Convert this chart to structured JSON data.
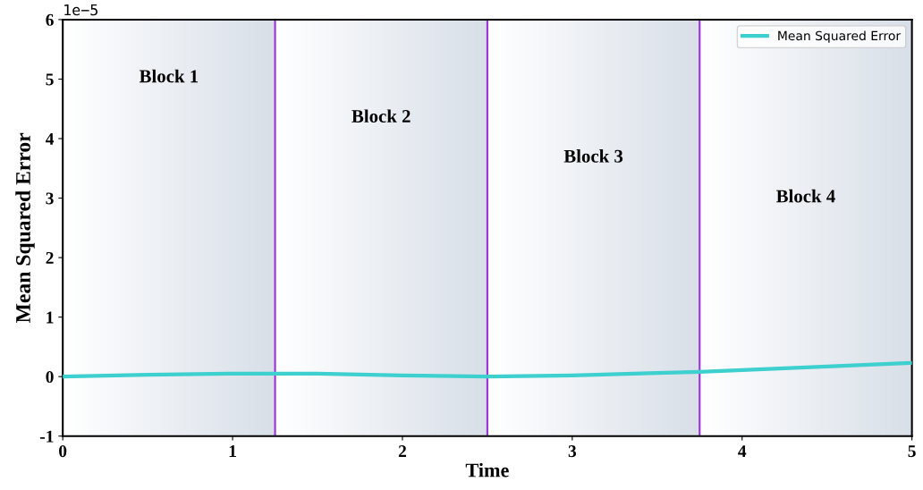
{
  "chart_data": {
    "type": "line",
    "xlabel": "Time",
    "ylabel": "Mean Squared Error",
    "x": [
      0,
      0.5,
      1,
      1.5,
      2,
      2.5,
      3,
      3.5,
      3.75,
      4,
      4.5,
      5
    ],
    "series": [
      {
        "name": "Mean Squared Error",
        "color": "#3ecfcf",
        "values": [
          0.0,
          0.03,
          0.05,
          0.05,
          0.02,
          0.0,
          0.02,
          0.06,
          0.08,
          0.11,
          0.17,
          0.23
        ]
      }
    ],
    "xlim": [
      0,
      5
    ],
    "xticks": [
      0,
      1,
      2,
      3,
      4,
      5
    ],
    "ylim": [
      -1,
      6
    ],
    "yticks": [
      -1,
      0,
      1,
      2,
      3,
      4,
      5,
      6
    ],
    "annotations": [
      "1e−5"
    ],
    "bands": [
      {
        "axis": "x",
        "from": 0,
        "to": 1.25,
        "label": "Block 1",
        "color": "#d8dfe8"
      },
      {
        "axis": "x",
        "from": 1.25,
        "to": 2.5,
        "label": "Block 2",
        "color": "#d8dfe8"
      },
      {
        "axis": "x",
        "from": 2.5,
        "to": 3.75,
        "label": "Block 3",
        "color": "#d8dfe8"
      },
      {
        "axis": "x",
        "from": 3.75,
        "to": 5,
        "label": "Block 4",
        "color": "#d8dfe8"
      }
    ],
    "ref_lines": [
      {
        "axis": "x",
        "value": 1.25,
        "color": "#9b30d9"
      },
      {
        "axis": "x",
        "value": 2.5,
        "color": "#9b30d9"
      },
      {
        "axis": "x",
        "value": 3.75,
        "color": "#9b30d9"
      }
    ],
    "legend": "top right",
    "grid": false,
    "line_style": "solid",
    "marker": "none"
  }
}
